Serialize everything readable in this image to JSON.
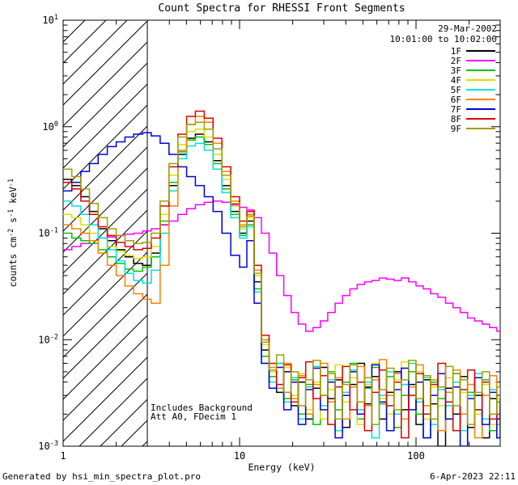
{
  "annotations": {
    "date": "29-Mar-2002",
    "time_range": "10:01:00 to 10:02:00",
    "note_background": "Includes Background",
    "note_attenuator": "Att A0, FDecim 1"
  },
  "footer": {
    "left": "Generated by hsi_min_spectra_plot.pro",
    "right": "6-Apr-2023 22:11"
  },
  "chart_data": {
    "type": "line",
    "mode": "histogram-step",
    "title": "Count Spectra for RHESSI Front Segments",
    "xlabel": "Energy (keV)",
    "ylabel": "counts cm^-2 s^-1 keV^-1",
    "ylabel_segments": [
      {
        "t": "counts cm"
      },
      {
        "sup": "-2"
      },
      {
        "t": " s"
      },
      {
        "sup": "-1"
      },
      {
        "t": " keV"
      },
      {
        "sup": "-1"
      }
    ],
    "xlog": true,
    "ylog": true,
    "xlim": [
      1,
      300
    ],
    "ylim": [
      0.001,
      10
    ],
    "grid": false,
    "legend_position": "top-right",
    "x_ticks": [
      {
        "value": 1,
        "label": "1"
      },
      {
        "value": 10,
        "label": "10"
      },
      {
        "value": 100,
        "label": "100"
      }
    ],
    "y_ticks": [
      {
        "exp": "-3"
      },
      {
        "exp": "-2"
      },
      {
        "exp": "-1"
      },
      {
        "exp": "0"
      },
      {
        "exp": "1"
      }
    ],
    "hatched_region": {
      "x_range": [
        1,
        3
      ],
      "style": "diagonal-hatch"
    },
    "x": [
      1.0,
      1.12,
      1.26,
      1.41,
      1.58,
      1.78,
      2.0,
      2.24,
      2.51,
      2.82,
      3.16,
      3.55,
      3.98,
      4.47,
      5.01,
      5.62,
      6.31,
      7.08,
      7.94,
      8.91,
      10.0,
      11.0,
      12.1,
      13.3,
      14.7,
      16.2,
      17.8,
      19.6,
      21.5,
      23.7,
      26.1,
      28.7,
      31.6,
      34.8,
      38.3,
      42.2,
      46.4,
      51.1,
      56.2,
      61.9,
      68.1,
      75.0,
      82.5,
      90.8,
      100,
      110,
      121,
      133,
      147,
      162,
      178,
      196,
      215,
      237,
      261,
      287,
      300
    ],
    "series": [
      {
        "name": "1F",
        "color": "#000000",
        "values": [
          0.32,
          0.28,
          0.22,
          0.16,
          0.11,
          0.085,
          0.07,
          0.06,
          0.052,
          0.05,
          0.065,
          0.12,
          0.28,
          0.55,
          0.78,
          0.85,
          0.72,
          0.48,
          0.28,
          0.16,
          0.1,
          0.13,
          0.035,
          0.008,
          0.004,
          0.0032,
          0.005,
          0.0024,
          0.004,
          0.0018,
          0.0035,
          0.0055,
          0.0028,
          0.0042,
          0.0015,
          0.0038,
          0.006,
          0.0025,
          0.0045,
          0.0018,
          0.0032,
          0.005,
          0.0022,
          0.0038,
          0.0016,
          0.0042,
          0.0025,
          0.001,
          0.0035,
          0.002,
          0.0045,
          0.0015,
          0.003,
          0.0012,
          0.0028,
          0.0018,
          0.0022
        ]
      },
      {
        "name": "2F",
        "color": "#ff00ff",
        "values": [
          0.07,
          0.075,
          0.08,
          0.085,
          0.09,
          0.092,
          0.095,
          0.098,
          0.1,
          0.105,
          0.11,
          0.12,
          0.13,
          0.15,
          0.17,
          0.185,
          0.195,
          0.2,
          0.195,
          0.185,
          0.175,
          0.165,
          0.14,
          0.1,
          0.065,
          0.04,
          0.026,
          0.018,
          0.014,
          0.012,
          0.013,
          0.015,
          0.018,
          0.022,
          0.026,
          0.03,
          0.033,
          0.035,
          0.036,
          0.038,
          0.037,
          0.036,
          0.038,
          0.035,
          0.032,
          0.03,
          0.027,
          0.025,
          0.022,
          0.02,
          0.018,
          0.016,
          0.015,
          0.014,
          0.013,
          0.012,
          0.012
        ]
      },
      {
        "name": "3F",
        "color": "#00c400",
        "values": [
          0.1,
          0.09,
          0.085,
          0.08,
          0.07,
          0.06,
          0.052,
          0.046,
          0.044,
          0.048,
          0.06,
          0.13,
          0.3,
          0.58,
          0.75,
          0.8,
          0.68,
          0.45,
          0.26,
          0.15,
          0.095,
          0.12,
          0.03,
          0.007,
          0.0045,
          0.006,
          0.0028,
          0.0042,
          0.002,
          0.0038,
          0.0016,
          0.003,
          0.005,
          0.0022,
          0.004,
          0.006,
          0.0018,
          0.0035,
          0.0055,
          0.0025,
          0.0045,
          0.0015,
          0.003,
          0.005,
          0.002,
          0.0012,
          0.004,
          0.0028,
          0.0018,
          0.0048,
          0.001,
          0.0032,
          0.0022,
          0.0042,
          0.0014,
          0.0026,
          0.0018
        ]
      },
      {
        "name": "4F",
        "color": "#dddd00",
        "values": [
          0.15,
          0.14,
          0.12,
          0.1,
          0.09,
          0.075,
          0.068,
          0.062,
          0.058,
          0.06,
          0.075,
          0.15,
          0.35,
          0.68,
          0.9,
          0.95,
          0.8,
          0.55,
          0.32,
          0.18,
          0.11,
          0.14,
          0.04,
          0.009,
          0.005,
          0.0035,
          0.0055,
          0.003,
          0.0048,
          0.0022,
          0.004,
          0.0018,
          0.0034,
          0.0058,
          0.0026,
          0.0044,
          0.0016,
          0.0038,
          0.006,
          0.0028,
          0.002,
          0.0042,
          0.0062,
          0.003,
          0.005,
          0.0018,
          0.0036,
          0.0024,
          0.0044,
          0.0014,
          0.0032,
          0.0052,
          0.002,
          0.0038,
          0.0016,
          0.0028,
          0.0022
        ]
      },
      {
        "name": "5F",
        "color": "#00e0e0",
        "values": [
          0.2,
          0.18,
          0.15,
          0.12,
          0.09,
          0.07,
          0.055,
          0.042,
          0.036,
          0.034,
          0.045,
          0.1,
          0.25,
          0.5,
          0.66,
          0.7,
          0.6,
          0.4,
          0.24,
          0.14,
          0.09,
          0.115,
          0.028,
          0.006,
          0.004,
          0.006,
          0.0026,
          0.0044,
          0.0018,
          0.0036,
          0.0056,
          0.0024,
          0.0042,
          0.0014,
          0.0032,
          0.0052,
          0.0022,
          0.004,
          0.0012,
          0.003,
          0.005,
          0.002,
          0.0038,
          0.006,
          0.0026,
          0.0044,
          0.0016,
          0.0034,
          0.0024,
          0.004,
          0.0014,
          0.003,
          0.0048,
          0.0018,
          0.0034,
          0.0012,
          0.0026
        ]
      },
      {
        "name": "6F",
        "color": "#ff8000",
        "values": [
          0.12,
          0.11,
          0.1,
          0.085,
          0.065,
          0.05,
          0.04,
          0.032,
          0.027,
          0.024,
          0.022,
          0.05,
          0.18,
          0.6,
          1.05,
          1.25,
          1.1,
          0.7,
          0.38,
          0.2,
          0.12,
          0.15,
          0.045,
          0.01,
          0.0055,
          0.0035,
          0.006,
          0.0028,
          0.0046,
          0.002,
          0.0038,
          0.006,
          0.0026,
          0.0044,
          0.0018,
          0.0036,
          0.0056,
          0.0024,
          0.0042,
          0.0065,
          0.003,
          0.0048,
          0.0018,
          0.0036,
          0.0058,
          0.0024,
          0.0042,
          0.0014,
          0.0032,
          0.0052,
          0.002,
          0.0038,
          0.0012,
          0.003,
          0.0046,
          0.0016,
          0.0028
        ]
      },
      {
        "name": "7F",
        "color": "#0000dd",
        "values": [
          0.25,
          0.3,
          0.38,
          0.45,
          0.55,
          0.65,
          0.72,
          0.8,
          0.85,
          0.88,
          0.82,
          0.7,
          0.55,
          0.42,
          0.34,
          0.28,
          0.22,
          0.16,
          0.1,
          0.062,
          0.048,
          0.085,
          0.022,
          0.006,
          0.0035,
          0.0055,
          0.0022,
          0.004,
          0.0016,
          0.0034,
          0.0054,
          0.0022,
          0.004,
          0.0012,
          0.003,
          0.005,
          0.002,
          0.0036,
          0.0058,
          0.0026,
          0.0014,
          0.0034,
          0.0054,
          0.0022,
          0.004,
          0.0012,
          0.003,
          0.0048,
          0.0018,
          0.0036,
          0.001,
          0.0028,
          0.0044,
          0.0016,
          0.0032,
          0.0012,
          0.0024
        ]
      },
      {
        "name": "8F",
        "color": "#dd0000",
        "values": [
          0.3,
          0.26,
          0.2,
          0.15,
          0.115,
          0.095,
          0.082,
          0.075,
          0.07,
          0.072,
          0.09,
          0.18,
          0.42,
          0.85,
          1.25,
          1.4,
          1.2,
          0.78,
          0.42,
          0.22,
          0.13,
          0.16,
          0.05,
          0.011,
          0.006,
          0.0038,
          0.0058,
          0.0026,
          0.0044,
          0.0062,
          0.0028,
          0.0046,
          0.0016,
          0.0036,
          0.0056,
          0.0022,
          0.004,
          0.0014,
          0.0032,
          0.0052,
          0.0024,
          0.004,
          0.0012,
          0.003,
          0.0048,
          0.002,
          0.0038,
          0.006,
          0.0026,
          0.0014,
          0.0034,
          0.0052,
          0.0022,
          0.004,
          0.0018,
          0.003,
          0.0024
        ]
      },
      {
        "name": "9F",
        "color": "#9f9f00",
        "values": [
          0.4,
          0.34,
          0.26,
          0.19,
          0.14,
          0.11,
          0.095,
          0.085,
          0.08,
          0.082,
          0.1,
          0.2,
          0.45,
          0.8,
          1.05,
          1.1,
          0.95,
          0.62,
          0.35,
          0.19,
          0.115,
          0.145,
          0.042,
          0.0095,
          0.0052,
          0.0072,
          0.0032,
          0.005,
          0.0024,
          0.0042,
          0.0064,
          0.003,
          0.0048,
          0.0018,
          0.0038,
          0.0058,
          0.0026,
          0.0044,
          0.0016,
          0.0034,
          0.0054,
          0.0022,
          0.0042,
          0.0064,
          0.0028,
          0.0046,
          0.0018,
          0.0036,
          0.0056,
          0.0024,
          0.0042,
          0.0016,
          0.0032,
          0.005,
          0.002,
          0.0036,
          0.0028
        ]
      }
    ]
  }
}
